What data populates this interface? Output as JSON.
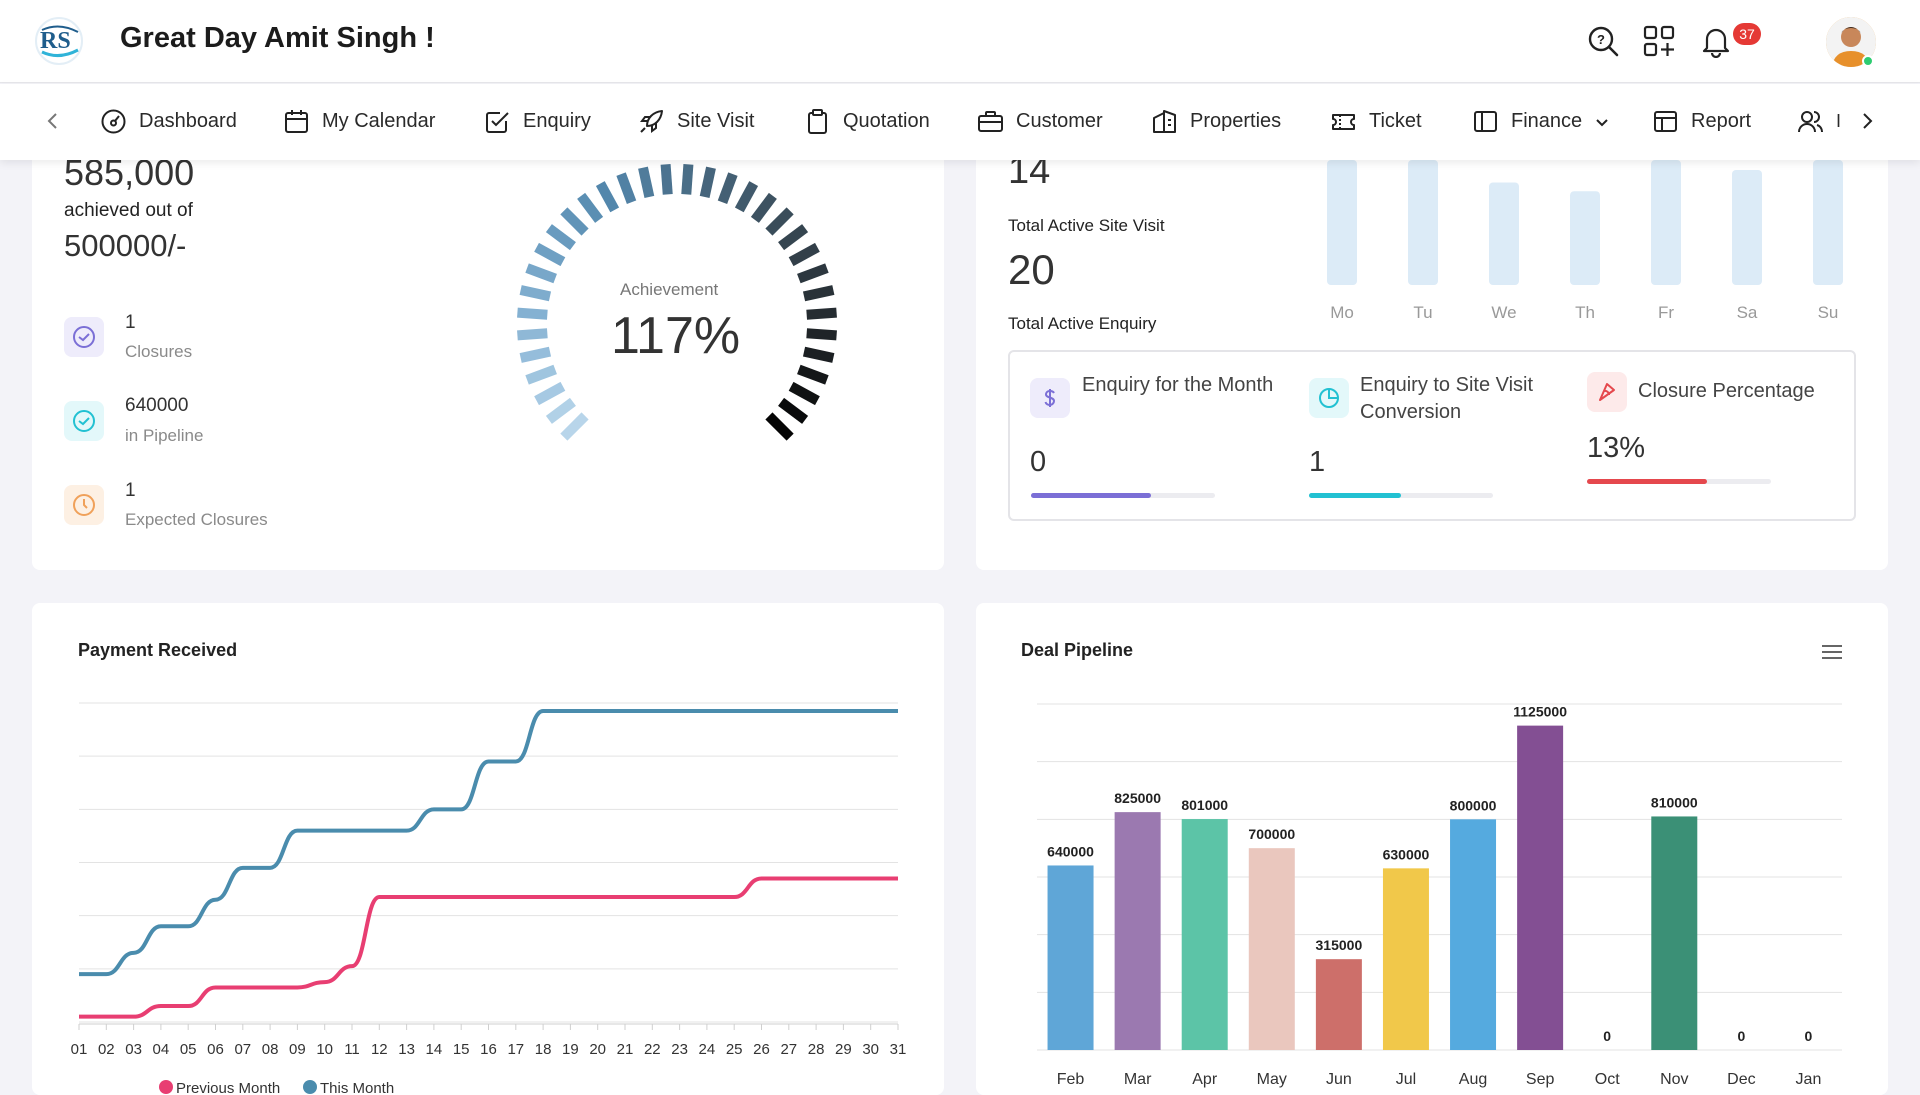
{
  "header": {
    "greeting": "Great Day Amit Singh !",
    "notification_count": "37"
  },
  "nav": {
    "items": [
      {
        "label": "Dashboard",
        "icon": "dashboard-gauge-icon"
      },
      {
        "label": "My Calendar",
        "icon": "calendar-icon"
      },
      {
        "label": "Enquiry",
        "icon": "checkbox-icon"
      },
      {
        "label": "Site Visit",
        "icon": "rocket-icon"
      },
      {
        "label": "Quotation",
        "icon": "clipboard-icon"
      },
      {
        "label": "Customer",
        "icon": "briefcase-icon"
      },
      {
        "label": "Properties",
        "icon": "building-icon"
      },
      {
        "label": "Ticket",
        "icon": "ticket-icon"
      },
      {
        "label": "Finance",
        "icon": "sidebar-panel-icon",
        "dropdown": true
      },
      {
        "label": "Report",
        "icon": "table-icon"
      },
      {
        "label": "I",
        "icon": "users-icon"
      }
    ]
  },
  "target": {
    "achieved": "585,000",
    "achieved_label": "achieved out of",
    "target": "500000/-",
    "stats": [
      {
        "value": "1",
        "label": "Closures",
        "icon": "check-circle-icon",
        "color": "#7b6fd6",
        "bg": "#eeecfb"
      },
      {
        "value": "640000",
        "label": "in Pipeline",
        "icon": "check-circle-icon",
        "color": "#22c1d2",
        "bg": "#e3f8fa"
      },
      {
        "value": "1",
        "label": "Expected Closures",
        "icon": "clock-icon",
        "color": "#f0a15a",
        "bg": "#fdf0e3"
      }
    ],
    "gauge_label": "Achievement",
    "gauge_value": "117%",
    "gauge_fraction": 1.0
  },
  "activity": {
    "site_visit_value": "14",
    "site_visit_label": "Total Active Site Visit",
    "enquiry_value": "20",
    "enquiry_label": "Total Active Enquiry",
    "week_days": [
      "Mo",
      "Tu",
      "We",
      "Th",
      "Fr",
      "Sa",
      "Su"
    ],
    "week_bar_fractions": [
      1.0,
      1.0,
      0.82,
      0.75,
      1.0,
      0.92,
      1.0
    ],
    "metrics": [
      {
        "title": "Enquiry for the Month",
        "value": "0",
        "progress": 0.65,
        "color": "#7b6fd6",
        "icon": "dollar-icon",
        "icon_bg": "#eeecfb"
      },
      {
        "title": "Enquiry to Site Visit Conversion",
        "value": "1",
        "progress": 0.5,
        "color": "#22c1d2",
        "icon": "pie-chart-icon",
        "icon_bg": "#e3f8fa"
      },
      {
        "title": "Closure Percentage",
        "value": "13%",
        "progress": 0.65,
        "color": "#e5484d",
        "icon": "pie-slice-icon",
        "icon_bg": "#fdeaea"
      }
    ]
  },
  "payment": {
    "title": "Payment Received"
  },
  "pipeline": {
    "title": "Deal Pipeline"
  },
  "chart_data": [
    {
      "type": "line",
      "title": "Payment Received",
      "x": [
        "01",
        "02",
        "03",
        "04",
        "05",
        "06",
        "07",
        "08",
        "09",
        "10",
        "11",
        "12",
        "13",
        "14",
        "15",
        "16",
        "17",
        "18",
        "19",
        "20",
        "21",
        "22",
        "23",
        "24",
        "25",
        "26",
        "27",
        "28",
        "29",
        "30",
        "31"
      ],
      "series": [
        {
          "name": "Previous Month",
          "color": "#e83e72",
          "values": [
            0.1,
            0.1,
            0.1,
            0.3,
            0.3,
            0.65,
            0.65,
            0.65,
            0.65,
            0.75,
            1.05,
            2.35,
            2.35,
            2.35,
            2.35,
            2.35,
            2.35,
            2.35,
            2.35,
            2.35,
            2.35,
            2.35,
            2.35,
            2.35,
            2.35,
            2.7,
            2.7,
            2.7,
            2.7,
            2.7,
            2.7
          ]
        },
        {
          "name": "This Month",
          "color": "#4a8cad",
          "values": [
            0.9,
            0.9,
            1.3,
            1.8,
            1.8,
            2.3,
            2.9,
            2.9,
            3.6,
            3.6,
            3.6,
            3.6,
            3.6,
            4.0,
            4.0,
            4.9,
            4.9,
            5.85,
            5.85,
            5.85,
            5.85,
            5.85,
            5.85,
            5.85,
            5.85,
            5.85,
            5.85,
            5.85,
            5.85,
            5.85,
            5.85
          ]
        }
      ],
      "ylim": [
        0,
        6
      ],
      "grid": true,
      "legend": "bottom"
    },
    {
      "type": "bar",
      "title": "Deal Pipeline",
      "categories": [
        "Feb",
        "Mar",
        "Apr",
        "May",
        "Jun",
        "Jul",
        "Aug",
        "Sep",
        "Oct",
        "Nov",
        "Dec",
        "Jan"
      ],
      "values": [
        640000,
        825000,
        801000,
        700000,
        315000,
        630000,
        800000,
        1125000,
        0,
        810000,
        0,
        0
      ],
      "colors": [
        "#5fa6d7",
        "#9b79b0",
        "#5cc4a7",
        "#eac7be",
        "#cd6f6a",
        "#f1c84a",
        "#55aadf",
        "#834f93",
        "#d36a62",
        "#3b9076",
        "#5fa6d7",
        "#5fa6d7"
      ],
      "ylim": [
        0,
        1200000
      ],
      "grid": true,
      "data_labels": true
    }
  ]
}
